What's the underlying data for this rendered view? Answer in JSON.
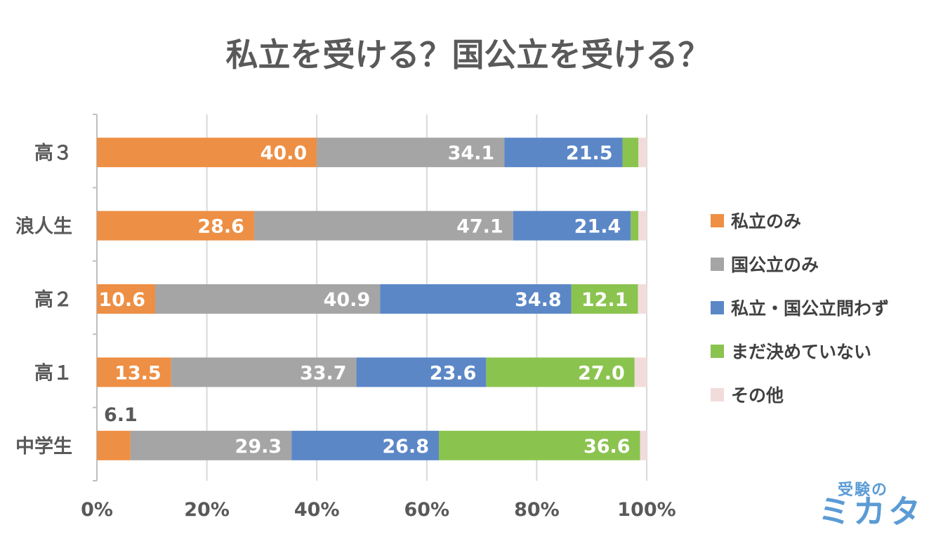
{
  "chart_data": {
    "type": "bar",
    "orientation": "horizontal-stacked-100",
    "title": "私立を受ける？国公立を受ける？",
    "categories": [
      "高３",
      "浪人生",
      "高２",
      "高１",
      "中学生"
    ],
    "series": [
      {
        "name": "私立のみ",
        "color": "#ed8f44",
        "values": [
          40.0,
          28.6,
          10.6,
          13.5,
          6.1
        ]
      },
      {
        "name": "国公立のみ",
        "color": "#a5a5a5",
        "values": [
          34.1,
          47.1,
          40.9,
          33.7,
          29.3
        ]
      },
      {
        "name": "私立・国公立問わず",
        "color": "#5b87c7",
        "values": [
          21.5,
          21.4,
          34.8,
          23.6,
          26.8
        ]
      },
      {
        "name": "まだ決めていない",
        "color": "#8bc34f",
        "values": [
          2.9,
          1.4,
          12.1,
          27.0,
          36.6
        ]
      },
      {
        "name": "その他",
        "color": "#f2dcdb",
        "values": [
          1.5,
          1.5,
          1.6,
          2.2,
          1.2
        ]
      }
    ],
    "shown_labels": [
      [
        "40.0",
        "34.1",
        "21.5",
        "",
        ""
      ],
      [
        "28.6",
        "47.1",
        "21.4",
        "",
        ""
      ],
      [
        "10.6",
        "40.9",
        "34.8",
        "12.1",
        ""
      ],
      [
        "13.5",
        "33.7",
        "23.6",
        "27.0",
        ""
      ],
      [
        "6.1",
        "29.3",
        "26.8",
        "36.6",
        ""
      ]
    ],
    "x_ticks": [
      "0%",
      "20%",
      "40%",
      "60%",
      "80%",
      "100%"
    ],
    "xlim": [
      0,
      100
    ],
    "grid": true,
    "legend_position": "right"
  },
  "logo": {
    "top": "受験の",
    "main": "ミカタ"
  }
}
